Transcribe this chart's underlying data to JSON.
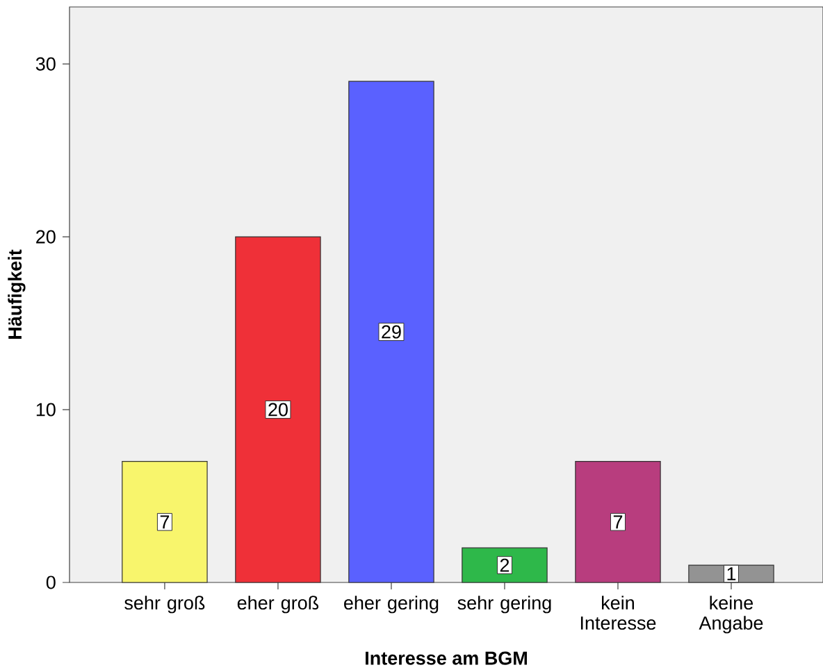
{
  "chart_data": {
    "type": "bar",
    "xlabel": "Interesse am BGM",
    "ylabel": "Häufigkeit",
    "categories": [
      "sehr groß",
      "eher groß",
      "eher gering",
      "sehr gering",
      "kein Interesse",
      "keine Angabe"
    ],
    "values": [
      7,
      20,
      29,
      2,
      7,
      1
    ],
    "colors": [
      "#f8f56c",
      "#ef3038",
      "#5a61ff",
      "#2eb84a",
      "#b83d7e",
      "#939393"
    ],
    "ylim": [
      0,
      33.3
    ],
    "yticks": [
      0,
      10,
      20,
      30
    ],
    "grid": false,
    "data_labels": true
  }
}
